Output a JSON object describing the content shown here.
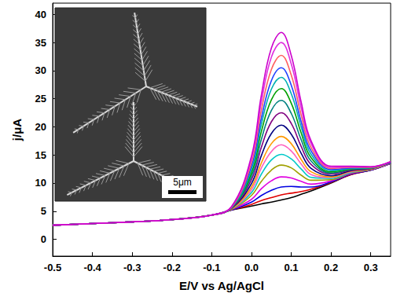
{
  "chart_data": {
    "type": "line",
    "x_label": "E/V vs Ag/AgCl",
    "y_label": "j/μA",
    "xlim": [
      -0.5,
      0.35
    ],
    "ylim": [
      -3,
      42
    ],
    "xticks": [
      -0.5,
      -0.4,
      -0.3,
      -0.2,
      -0.1,
      {
        "value": 0,
        "label": "0.0"
      },
      0.1,
      0.2,
      0.3
    ],
    "yticks": [
      0,
      5,
      10,
      15,
      20,
      25,
      30,
      35,
      40
    ],
    "grid": false,
    "inset": {
      "scale_bar_label": "5μm"
    },
    "x": [
      -0.5,
      -0.4,
      -0.3,
      -0.2,
      -0.1,
      -0.05,
      0,
      0.025,
      0.05,
      0.075,
      0.1,
      0.125,
      0.15,
      0.2,
      0.25,
      0.3,
      0.35
    ],
    "series": [
      {
        "color": "#000000",
        "values": [
          2.5,
          2.8,
          3.1,
          3.5,
          4.3,
          5.2,
          5.9,
          6.3,
          6.6,
          7.0,
          7.4,
          8.0,
          8.6,
          10.0,
          11.5,
          12.3,
          13.5
        ]
      },
      {
        "color": "#e00000",
        "values": [
          2.5,
          2.8,
          3.1,
          3.5,
          4.3,
          5.2,
          6.2,
          6.9,
          7.4,
          7.9,
          8.2,
          8.5,
          8.9,
          10.1,
          11.5,
          12.3,
          13.5
        ]
      },
      {
        "color": "#0000e0",
        "values": [
          2.5,
          2.8,
          3.1,
          3.5,
          4.3,
          5.2,
          6.6,
          7.8,
          8.7,
          9.3,
          9.4,
          9.3,
          9.3,
          10.2,
          11.6,
          12.3,
          13.5
        ]
      },
      {
        "color": "#e000e0",
        "values": [
          2.5,
          2.8,
          3.1,
          3.5,
          4.3,
          5.3,
          7.1,
          9.0,
          10.4,
          11.1,
          10.9,
          10.3,
          9.8,
          10.4,
          11.7,
          12.4,
          13.5
        ]
      },
      {
        "color": "#a0a000",
        "values": [
          2.5,
          2.8,
          3.1,
          3.5,
          4.3,
          5.3,
          7.8,
          10.3,
          12.3,
          13.2,
          12.7,
          11.4,
          10.5,
          10.6,
          11.8,
          12.4,
          13.6
        ]
      },
      {
        "color": "#00c8c8",
        "values": [
          2.5,
          2.8,
          3.1,
          3.5,
          4.3,
          5.4,
          8.3,
          11.6,
          14.1,
          15.1,
          14.3,
          12.5,
          11.0,
          10.8,
          11.9,
          12.5,
          13.6
        ]
      },
      {
        "color": "#ff60c0",
        "values": [
          2.5,
          2.8,
          3.1,
          3.5,
          4.3,
          5.4,
          8.8,
          12.7,
          15.6,
          16.8,
          15.7,
          13.4,
          11.5,
          11.0,
          12.0,
          12.5,
          13.6
        ]
      },
      {
        "color": "#ff9900",
        "values": [
          2.5,
          2.8,
          3.1,
          3.5,
          4.3,
          5.4,
          9.3,
          13.6,
          17.0,
          18.3,
          17.0,
          14.2,
          12.0,
          11.1,
          12.1,
          12.5,
          13.6
        ]
      },
      {
        "color": "#000080",
        "values": [
          2.5,
          2.8,
          3.1,
          3.5,
          4.3,
          5.5,
          9.9,
          14.9,
          18.8,
          20.3,
          18.7,
          15.3,
          12.6,
          11.3,
          12.2,
          12.6,
          13.6
        ]
      },
      {
        "color": "#800080",
        "values": [
          2.5,
          2.8,
          3.1,
          3.5,
          4.3,
          5.5,
          10.6,
          16.4,
          20.9,
          22.5,
          20.6,
          16.5,
          13.3,
          11.6,
          12.3,
          12.6,
          13.7
        ]
      },
      {
        "color": "#008080",
        "values": [
          2.5,
          2.8,
          3.1,
          3.5,
          4.3,
          5.6,
          11.2,
          17.8,
          22.9,
          24.7,
          22.4,
          17.7,
          13.9,
          11.8,
          12.4,
          12.7,
          13.7
        ]
      },
      {
        "color": "#00a000",
        "values": [
          2.5,
          2.8,
          3.1,
          3.5,
          4.3,
          5.6,
          11.8,
          19.2,
          24.8,
          26.8,
          24.2,
          18.9,
          14.5,
          12.0,
          12.5,
          12.7,
          13.7
        ]
      },
      {
        "color": "#00b0b0",
        "values": [
          2.5,
          2.8,
          3.1,
          3.5,
          4.3,
          5.6,
          12.4,
          20.5,
          26.7,
          28.8,
          25.9,
          20.0,
          15.1,
          12.2,
          12.6,
          12.7,
          13.7
        ]
      },
      {
        "color": "#2040ff",
        "values": [
          2.5,
          2.8,
          3.1,
          3.5,
          4.3,
          5.7,
          13.0,
          21.6,
          28.2,
          30.5,
          27.4,
          20.9,
          15.7,
          12.4,
          12.7,
          12.8,
          13.7
        ]
      },
      {
        "color": "#ff6060",
        "values": [
          2.5,
          2.8,
          3.1,
          3.5,
          4.3,
          5.7,
          13.6,
          23.0,
          30.2,
          32.7,
          29.2,
          22.1,
          16.3,
          12.6,
          12.8,
          12.8,
          13.8
        ]
      },
      {
        "color": "#e030e0",
        "values": [
          2.5,
          2.8,
          3.1,
          3.5,
          4.3,
          5.8,
          14.3,
          24.5,
          32.4,
          35.0,
          31.2,
          23.4,
          17.0,
          12.8,
          12.9,
          12.9,
          13.8
        ]
      },
      {
        "color": "#cc00cc",
        "values": [
          2.5,
          2.8,
          3.1,
          3.5,
          4.3,
          5.8,
          14.8,
          25.7,
          34.0,
          36.8,
          32.7,
          24.4,
          17.5,
          13.0,
          13.0,
          12.9,
          13.8
        ]
      }
    ]
  }
}
